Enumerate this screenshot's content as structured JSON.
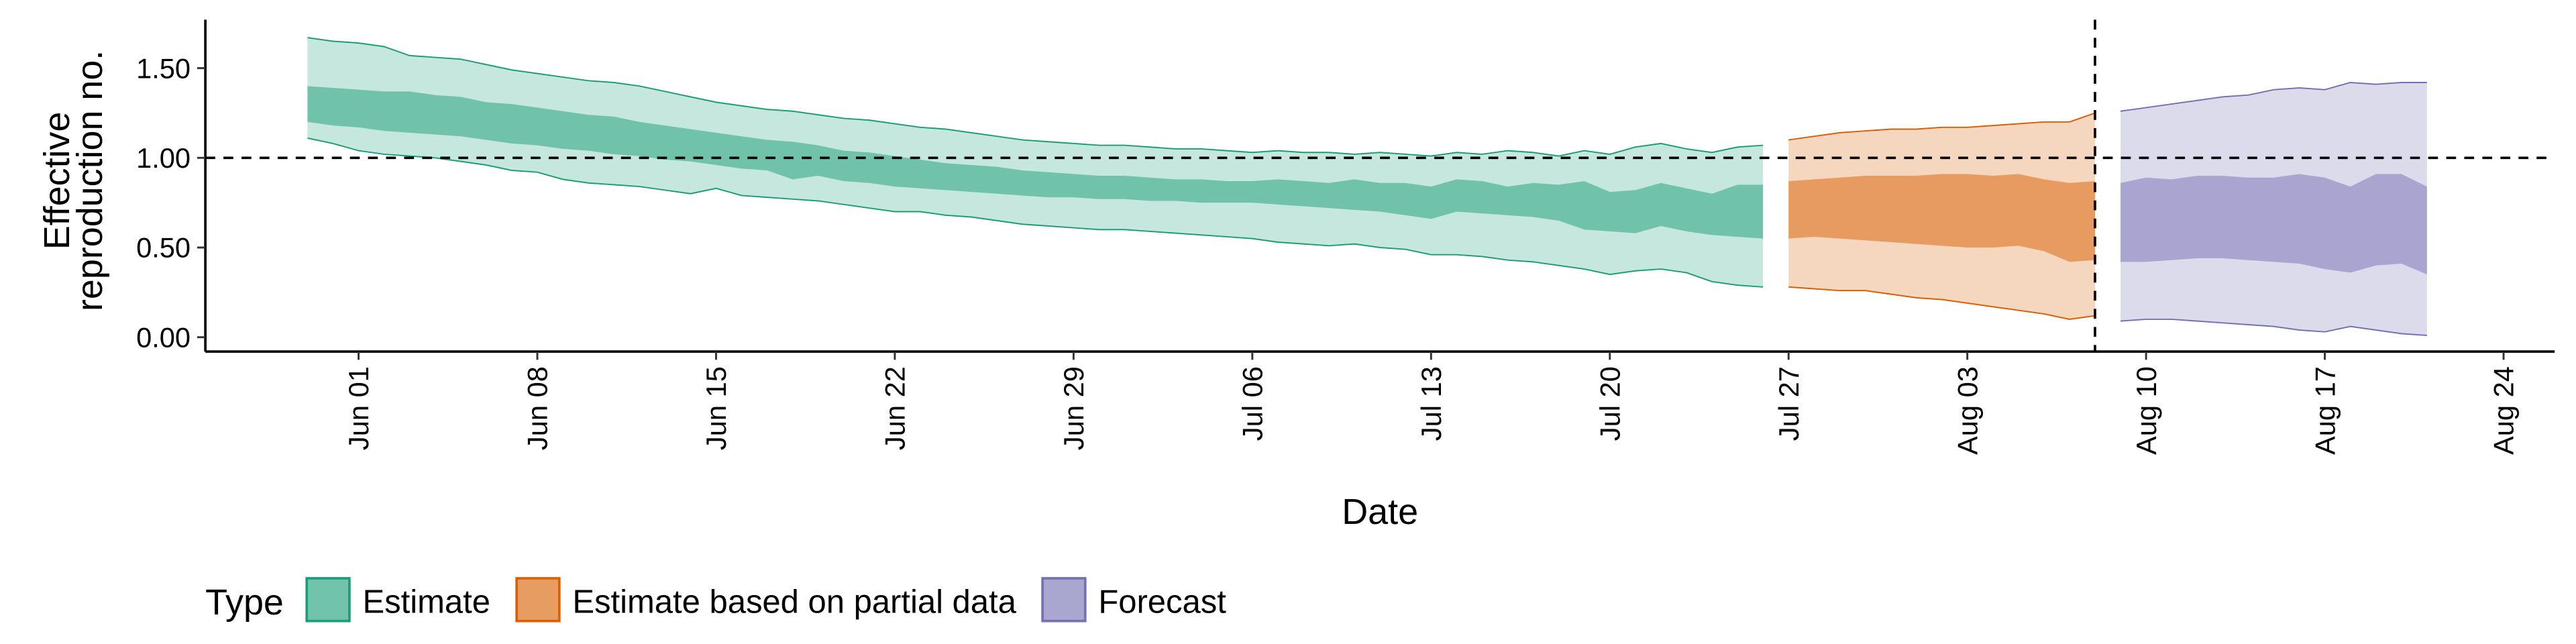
{
  "chart_data": {
    "type": "ribbon",
    "xlabel": "Date",
    "ylabel": [
      "Effective",
      "reproduction no."
    ],
    "xlim": [
      "May 26",
      "Aug 26"
    ],
    "xticks": [
      "Jun 01",
      "Jun 08",
      "Jun 15",
      "Jun 22",
      "Jun 29",
      "Jul 06",
      "Jul 13",
      "Jul 20",
      "Jul 27",
      "Aug 03",
      "Aug 10",
      "Aug 17",
      "Aug 24"
    ],
    "ylim": [
      -0.08,
      1.77
    ],
    "yticks": [
      {
        "value": 0,
        "label": "0.00"
      },
      {
        "value": 0.5,
        "label": "0.50"
      },
      {
        "value": 1,
        "label": "1.00"
      },
      {
        "value": 1.5,
        "label": "1.50"
      }
    ],
    "hline": 1,
    "vline": "Aug 08",
    "legend_title": "Type",
    "legend_position": "bottom",
    "series": [
      {
        "name": "Estimate",
        "color": "#1b9e77",
        "x": [
          "May 30",
          "May 31",
          "Jun 01",
          "Jun 02",
          "Jun 03",
          "Jun 04",
          "Jun 05",
          "Jun 06",
          "Jun 07",
          "Jun 08",
          "Jun 09",
          "Jun 10",
          "Jun 11",
          "Jun 12",
          "Jun 13",
          "Jun 14",
          "Jun 15",
          "Jun 16",
          "Jun 17",
          "Jun 18",
          "Jun 19",
          "Jun 20",
          "Jun 21",
          "Jun 22",
          "Jun 23",
          "Jun 24",
          "Jun 25",
          "Jun 26",
          "Jun 27",
          "Jun 28",
          "Jun 29",
          "Jun 30",
          "Jul 01",
          "Jul 02",
          "Jul 03",
          "Jul 04",
          "Jul 05",
          "Jul 06",
          "Jul 07",
          "Jul 08",
          "Jul 09",
          "Jul 10",
          "Jul 11",
          "Jul 12",
          "Jul 13",
          "Jul 14",
          "Jul 15",
          "Jul 16",
          "Jul 17",
          "Jul 18",
          "Jul 19",
          "Jul 20",
          "Jul 21",
          "Jul 22",
          "Jul 23",
          "Jul 24",
          "Jul 25",
          "Jul 26"
        ],
        "upper_90": [
          1.67,
          1.65,
          1.64,
          1.62,
          1.57,
          1.56,
          1.55,
          1.52,
          1.49,
          1.47,
          1.45,
          1.43,
          1.42,
          1.4,
          1.37,
          1.34,
          1.31,
          1.29,
          1.27,
          1.26,
          1.24,
          1.22,
          1.21,
          1.19,
          1.17,
          1.16,
          1.14,
          1.12,
          1.1,
          1.09,
          1.08,
          1.07,
          1.07,
          1.06,
          1.05,
          1.05,
          1.04,
          1.03,
          1.04,
          1.03,
          1.03,
          1.02,
          1.03,
          1.02,
          1.01,
          1.03,
          1.02,
          1.04,
          1.03,
          1.01,
          1.04,
          1.02,
          1.06,
          1.08,
          1.05,
          1.03,
          1.06,
          1.07
        ],
        "upper_50": [
          1.4,
          1.39,
          1.38,
          1.37,
          1.37,
          1.35,
          1.34,
          1.31,
          1.3,
          1.28,
          1.26,
          1.24,
          1.23,
          1.2,
          1.18,
          1.16,
          1.14,
          1.12,
          1.1,
          1.09,
          1.07,
          1.04,
          1.03,
          1.01,
          0.99,
          0.97,
          0.96,
          0.95,
          0.93,
          0.92,
          0.91,
          0.9,
          0.9,
          0.89,
          0.88,
          0.88,
          0.87,
          0.87,
          0.88,
          0.87,
          0.86,
          0.88,
          0.86,
          0.86,
          0.84,
          0.88,
          0.87,
          0.84,
          0.86,
          0.85,
          0.87,
          0.81,
          0.82,
          0.86,
          0.83,
          0.8,
          0.85,
          0.85
        ],
        "lower_50": [
          1.2,
          1.18,
          1.17,
          1.15,
          1.14,
          1.13,
          1.12,
          1.1,
          1.08,
          1.07,
          1.05,
          1.04,
          1.02,
          1.01,
          0.99,
          0.98,
          0.96,
          0.94,
          0.93,
          0.88,
          0.9,
          0.87,
          0.86,
          0.84,
          0.83,
          0.82,
          0.81,
          0.8,
          0.79,
          0.78,
          0.78,
          0.77,
          0.77,
          0.76,
          0.76,
          0.75,
          0.75,
          0.75,
          0.74,
          0.73,
          0.72,
          0.71,
          0.7,
          0.68,
          0.66,
          0.7,
          0.69,
          0.68,
          0.67,
          0.65,
          0.6,
          0.59,
          0.58,
          0.62,
          0.59,
          0.57,
          0.56,
          0.55
        ],
        "lower_90": [
          1.11,
          1.08,
          1.04,
          1.02,
          1.01,
          1.0,
          0.98,
          0.96,
          0.93,
          0.92,
          0.88,
          0.86,
          0.85,
          0.84,
          0.82,
          0.8,
          0.83,
          0.79,
          0.78,
          0.77,
          0.76,
          0.74,
          0.72,
          0.7,
          0.7,
          0.68,
          0.67,
          0.65,
          0.63,
          0.62,
          0.61,
          0.6,
          0.6,
          0.59,
          0.58,
          0.57,
          0.56,
          0.55,
          0.53,
          0.52,
          0.51,
          0.52,
          0.5,
          0.49,
          0.46,
          0.46,
          0.45,
          0.43,
          0.42,
          0.4,
          0.38,
          0.35,
          0.37,
          0.38,
          0.36,
          0.31,
          0.29,
          0.28
        ]
      },
      {
        "name": "Estimate based on partial data",
        "color": "#d95f02",
        "x": [
          "Jul 27",
          "Jul 28",
          "Jul 29",
          "Jul 30",
          "Jul 31",
          "Aug 01",
          "Aug 02",
          "Aug 03",
          "Aug 04",
          "Aug 05",
          "Aug 06",
          "Aug 07",
          "Aug 08"
        ],
        "upper_90": [
          1.1,
          1.12,
          1.14,
          1.15,
          1.16,
          1.16,
          1.17,
          1.17,
          1.18,
          1.19,
          1.2,
          1.2,
          1.25
        ],
        "upper_50": [
          0.87,
          0.88,
          0.89,
          0.9,
          0.9,
          0.9,
          0.91,
          0.91,
          0.9,
          0.91,
          0.88,
          0.86,
          0.87
        ],
        "lower_50": [
          0.55,
          0.56,
          0.55,
          0.54,
          0.53,
          0.52,
          0.51,
          0.5,
          0.5,
          0.51,
          0.48,
          0.42,
          0.43
        ],
        "lower_90": [
          0.28,
          0.27,
          0.26,
          0.26,
          0.24,
          0.22,
          0.21,
          0.19,
          0.17,
          0.15,
          0.13,
          0.1,
          0.12
        ]
      },
      {
        "name": "Forecast",
        "color": "#7570b3",
        "x": [
          "Aug 09",
          "Aug 10",
          "Aug 11",
          "Aug 12",
          "Aug 13",
          "Aug 14",
          "Aug 15",
          "Aug 16",
          "Aug 17",
          "Aug 18",
          "Aug 19",
          "Aug 20",
          "Aug 21"
        ],
        "upper_90": [
          1.26,
          1.28,
          1.3,
          1.32,
          1.34,
          1.35,
          1.38,
          1.39,
          1.38,
          1.42,
          1.41,
          1.42,
          1.42
        ],
        "upper_50": [
          0.86,
          0.89,
          0.88,
          0.9,
          0.9,
          0.89,
          0.89,
          0.91,
          0.89,
          0.84,
          0.91,
          0.91,
          0.84
        ],
        "lower_50": [
          0.42,
          0.42,
          0.43,
          0.44,
          0.44,
          0.43,
          0.42,
          0.41,
          0.38,
          0.36,
          0.4,
          0.41,
          0.35
        ],
        "lower_90": [
          0.09,
          0.1,
          0.1,
          0.09,
          0.08,
          0.07,
          0.06,
          0.04,
          0.03,
          0.06,
          0.04,
          0.02,
          0.01
        ]
      }
    ]
  }
}
